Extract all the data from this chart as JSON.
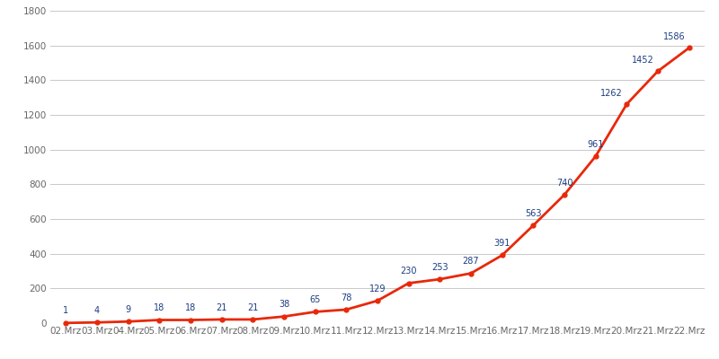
{
  "dates": [
    "02.Mrz",
    "03.Mrz",
    "04.Mrz",
    "05.Mrz",
    "06.Mrz",
    "07.Mrz",
    "08.Mrz",
    "09.Mrz",
    "10.Mrz",
    "11.Mrz",
    "12.Mrz",
    "13.Mrz",
    "14.Mrz",
    "15.Mrz",
    "16.Mrz",
    "17.Mrz",
    "18.Mrz",
    "19.Mrz",
    "20.Mrz",
    "21.Mrz",
    "22.Mrz"
  ],
  "values": [
    1,
    4,
    9,
    18,
    18,
    21,
    21,
    38,
    65,
    78,
    129,
    230,
    253,
    287,
    391,
    563,
    740,
    961,
    1262,
    1452,
    1586
  ],
  "line_color": "#E8280A",
  "marker_color": "#E8280A",
  "label_color": "#1C3D82",
  "background_color": "#FFFFFF",
  "grid_color": "#C8C8C8",
  "ylim": [
    0,
    1800
  ],
  "yticks": [
    0,
    200,
    400,
    600,
    800,
    1000,
    1200,
    1400,
    1600,
    1800
  ],
  "tick_label_color": "#666666",
  "line_width": 2.0,
  "marker_size": 3.5,
  "label_fontsize": 7.0,
  "tick_fontsize": 7.5
}
